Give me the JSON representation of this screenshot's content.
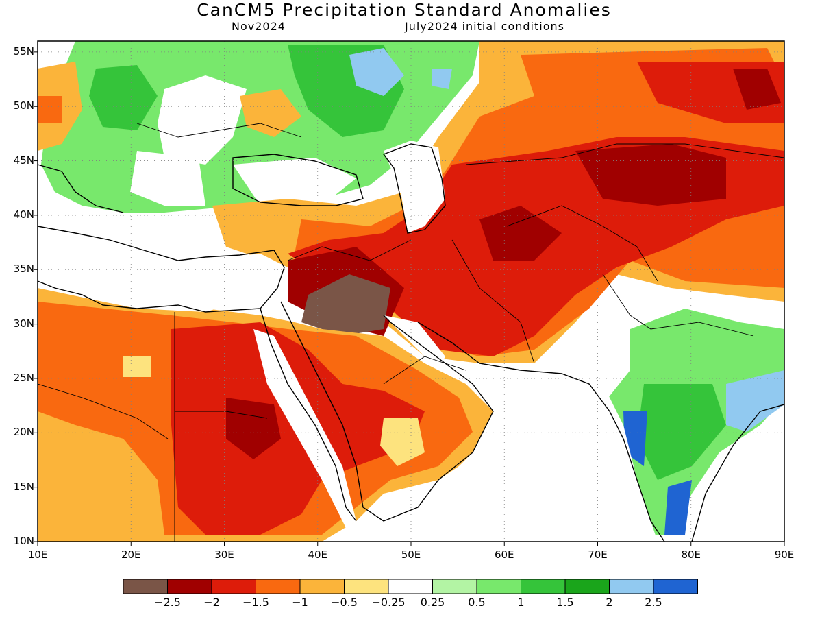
{
  "title": "CanCM5 Precipitation Standard Anomalies",
  "subtitle_left": "Nov2024",
  "subtitle_right": "July2024 initial conditions",
  "map": {
    "extent": {
      "lon": [
        10,
        90
      ],
      "lat": [
        10,
        56
      ]
    },
    "lat_labels": [
      "55N",
      "50N",
      "45N",
      "40N",
      "35N",
      "30N",
      "25N",
      "20N",
      "15N",
      "10N"
    ],
    "lon_labels": [
      "10E",
      "20E",
      "30E",
      "40E",
      "50E",
      "60E",
      "70E",
      "80E",
      "90E"
    ],
    "grid": "dotted"
  },
  "colorbar": {
    "colors": [
      "#7a5547",
      "#a00000",
      "#dd1c0a",
      "#f96910",
      "#fbb43a",
      "#fde37e",
      "#ffffff",
      "#b3f4a4",
      "#78e86c",
      "#35c43a",
      "#1aa51b",
      "#91c9f0",
      "#1f64d2"
    ],
    "labels": [
      "−2.5",
      "−2",
      "−1.5",
      "−1",
      "−0.5",
      "−0.25",
      "0.25",
      "0.5",
      "1",
      "1.5",
      "2",
      "2.5"
    ]
  }
}
